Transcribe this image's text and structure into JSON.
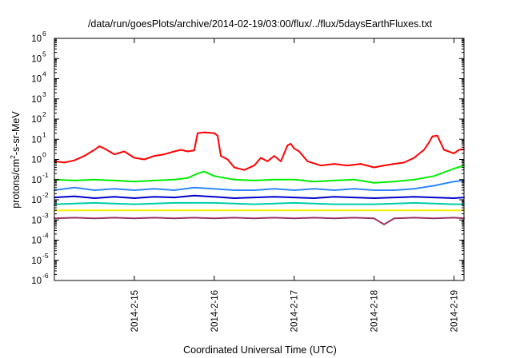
{
  "chart_data": {
    "type": "line",
    "title": "/data/run/goesPlots/archive/2014-02-19/03:00/flux/../flux/5daysEarthFluxes.txt",
    "xlabel": "Coordinated Universal Time (UTC)",
    "ylabel": {
      "base": "protons/cm",
      "sup": "2",
      "rest": "-s-sr-MeV"
    },
    "y_scale": "log",
    "ylim": [
      1e-06,
      1000000.0
    ],
    "y_ticks": [
      {
        "value": 1e-06,
        "base": "10",
        "exp": "-6"
      },
      {
        "value": 1e-05,
        "base": "10",
        "exp": "-5"
      },
      {
        "value": 0.0001,
        "base": "10",
        "exp": "-4"
      },
      {
        "value": 0.001,
        "base": "10",
        "exp": "-3"
      },
      {
        "value": 0.01,
        "base": "10",
        "exp": "-2"
      },
      {
        "value": 0.1,
        "base": "10",
        "exp": "-1"
      },
      {
        "value": 1.0,
        "base": "10",
        "exp": "0"
      },
      {
        "value": 10.0,
        "base": "10",
        "exp": "1"
      },
      {
        "value": 100.0,
        "base": "10",
        "exp": "2"
      },
      {
        "value": 1000.0,
        "base": "10",
        "exp": "3"
      },
      {
        "value": 10000.0,
        "base": "10",
        "exp": "4"
      },
      {
        "value": 100000.0,
        "base": "10",
        "exp": "5"
      },
      {
        "value": 1000000.0,
        "base": "10",
        "exp": "6"
      }
    ],
    "xlim": [
      "2014-02-14T00:00",
      "2014-02-19T03:00"
    ],
    "x_ticks": [
      {
        "label": "2014-2-15",
        "date": "2014-02-15T00:00"
      },
      {
        "label": "2014-2-16",
        "date": "2014-02-16T00:00"
      },
      {
        "label": "2014-2-17",
        "date": "2014-02-17T00:00"
      },
      {
        "label": "2014-2-18",
        "date": "2014-02-18T00:00"
      },
      {
        "label": "2014-2-19",
        "date": "2014-02-19T00:00"
      }
    ],
    "grid": false,
    "legend": "none",
    "series": [
      {
        "color": "#ff0000",
        "points": [
          [
            "2014-02-14T00:00",
            0.8
          ],
          [
            "2014-02-14T03:00",
            0.7
          ],
          [
            "2014-02-14T06:00",
            0.9
          ],
          [
            "2014-02-14T09:00",
            1.5
          ],
          [
            "2014-02-14T12:00",
            3.0
          ],
          [
            "2014-02-14T13:30",
            4.5
          ],
          [
            "2014-02-14T15:00",
            3.5
          ],
          [
            "2014-02-14T18:00",
            1.8
          ],
          [
            "2014-02-14T21:00",
            2.5
          ],
          [
            "2014-02-15T00:00",
            1.2
          ],
          [
            "2014-02-15T03:00",
            1.0
          ],
          [
            "2014-02-15T06:00",
            1.5
          ],
          [
            "2014-02-15T09:00",
            1.8
          ],
          [
            "2014-02-15T12:00",
            2.5
          ],
          [
            "2014-02-15T14:00",
            3.0
          ],
          [
            "2014-02-15T16:00",
            2.5
          ],
          [
            "2014-02-15T18:00",
            2.8
          ],
          [
            "2014-02-15T19:00",
            20
          ],
          [
            "2014-02-15T21:00",
            22
          ],
          [
            "2014-02-16T00:00",
            20
          ],
          [
            "2014-02-16T01:00",
            15
          ],
          [
            "2014-02-16T02:00",
            1.5
          ],
          [
            "2014-02-16T04:00",
            1.0
          ],
          [
            "2014-02-16T06:00",
            0.4
          ],
          [
            "2014-02-16T09:00",
            0.3
          ],
          [
            "2014-02-16T12:00",
            0.5
          ],
          [
            "2014-02-16T14:00",
            1.2
          ],
          [
            "2014-02-16T16:00",
            0.8
          ],
          [
            "2014-02-16T18:00",
            1.5
          ],
          [
            "2014-02-16T20:00",
            0.8
          ],
          [
            "2014-02-16T22:00",
            5.0
          ],
          [
            "2014-02-16T23:00",
            6.0
          ],
          [
            "2014-02-17T00:00",
            3.5
          ],
          [
            "2014-02-17T01:30",
            2.5
          ],
          [
            "2014-02-17T04:00",
            0.8
          ],
          [
            "2014-02-17T08:00",
            0.5
          ],
          [
            "2014-02-17T12:00",
            0.6
          ],
          [
            "2014-02-17T16:00",
            0.5
          ],
          [
            "2014-02-17T20:00",
            0.6
          ],
          [
            "2014-02-18T00:00",
            0.4
          ],
          [
            "2014-02-18T03:00",
            0.5
          ],
          [
            "2014-02-18T06:00",
            0.6
          ],
          [
            "2014-02-18T09:00",
            0.7
          ],
          [
            "2014-02-18T12:00",
            1.2
          ],
          [
            "2014-02-18T15:00",
            3.0
          ],
          [
            "2014-02-18T16:30",
            7.0
          ],
          [
            "2014-02-18T17:30",
            14
          ],
          [
            "2014-02-18T19:00",
            15
          ],
          [
            "2014-02-18T21:00",
            3.0
          ],
          [
            "2014-02-19T00:00",
            2.0
          ],
          [
            "2014-02-19T01:30",
            3.0
          ],
          [
            "2014-02-19T03:00",
            3.2
          ]
        ]
      },
      {
        "color": "#00ee00",
        "points": [
          [
            "2014-02-14T00:00",
            0.1
          ],
          [
            "2014-02-14T06:00",
            0.09
          ],
          [
            "2014-02-14T12:00",
            0.1
          ],
          [
            "2014-02-14T18:00",
            0.09
          ],
          [
            "2014-02-15T00:00",
            0.08
          ],
          [
            "2014-02-15T06:00",
            0.09
          ],
          [
            "2014-02-15T12:00",
            0.1
          ],
          [
            "2014-02-15T16:00",
            0.12
          ],
          [
            "2014-02-15T19:00",
            0.2
          ],
          [
            "2014-02-15T21:00",
            0.25
          ],
          [
            "2014-02-16T00:00",
            0.15
          ],
          [
            "2014-02-16T06:00",
            0.1
          ],
          [
            "2014-02-16T12:00",
            0.09
          ],
          [
            "2014-02-16T18:00",
            0.1
          ],
          [
            "2014-02-17T00:00",
            0.1
          ],
          [
            "2014-02-17T06:00",
            0.08
          ],
          [
            "2014-02-17T12:00",
            0.09
          ],
          [
            "2014-02-17T18:00",
            0.1
          ],
          [
            "2014-02-18T00:00",
            0.07
          ],
          [
            "2014-02-18T06:00",
            0.08
          ],
          [
            "2014-02-18T12:00",
            0.1
          ],
          [
            "2014-02-18T18:00",
            0.15
          ],
          [
            "2014-02-19T00:00",
            0.35
          ],
          [
            "2014-02-19T03:00",
            0.5
          ]
        ]
      },
      {
        "color": "#2f86ff",
        "points": [
          [
            "2014-02-14T00:00",
            0.03
          ],
          [
            "2014-02-14T06:00",
            0.04
          ],
          [
            "2014-02-14T12:00",
            0.03
          ],
          [
            "2014-02-14T18:00",
            0.035
          ],
          [
            "2014-02-15T00:00",
            0.03
          ],
          [
            "2014-02-15T06:00",
            0.035
          ],
          [
            "2014-02-15T12:00",
            0.03
          ],
          [
            "2014-02-15T18:00",
            0.04
          ],
          [
            "2014-02-16T00:00",
            0.035
          ],
          [
            "2014-02-16T06:00",
            0.03
          ],
          [
            "2014-02-16T12:00",
            0.03
          ],
          [
            "2014-02-16T18:00",
            0.035
          ],
          [
            "2014-02-17T00:00",
            0.03
          ],
          [
            "2014-02-17T06:00",
            0.035
          ],
          [
            "2014-02-17T12:00",
            0.03
          ],
          [
            "2014-02-17T18:00",
            0.035
          ],
          [
            "2014-02-18T00:00",
            0.03
          ],
          [
            "2014-02-18T06:00",
            0.03
          ],
          [
            "2014-02-18T12:00",
            0.035
          ],
          [
            "2014-02-18T18:00",
            0.05
          ],
          [
            "2014-02-19T00:00",
            0.08
          ],
          [
            "2014-02-19T03:00",
            0.09
          ]
        ]
      },
      {
        "color": "#0000cc",
        "points": [
          [
            "2014-02-14T00:00",
            0.013
          ],
          [
            "2014-02-14T06:00",
            0.015
          ],
          [
            "2014-02-14T12:00",
            0.012
          ],
          [
            "2014-02-14T18:00",
            0.014
          ],
          [
            "2014-02-15T00:00",
            0.012
          ],
          [
            "2014-02-15T06:00",
            0.014
          ],
          [
            "2014-02-15T12:00",
            0.013
          ],
          [
            "2014-02-15T18:00",
            0.016
          ],
          [
            "2014-02-16T00:00",
            0.014
          ],
          [
            "2014-02-16T06:00",
            0.012
          ],
          [
            "2014-02-16T12:00",
            0.013
          ],
          [
            "2014-02-16T18:00",
            0.014
          ],
          [
            "2014-02-17T00:00",
            0.013
          ],
          [
            "2014-02-17T06:00",
            0.012
          ],
          [
            "2014-02-17T12:00",
            0.014
          ],
          [
            "2014-02-17T18:00",
            0.013
          ],
          [
            "2014-02-18T00:00",
            0.012
          ],
          [
            "2014-02-18T06:00",
            0.013
          ],
          [
            "2014-02-18T12:00",
            0.014
          ],
          [
            "2014-02-18T18:00",
            0.013
          ],
          [
            "2014-02-19T00:00",
            0.012
          ],
          [
            "2014-02-19T03:00",
            0.013
          ]
        ]
      },
      {
        "color": "#00ccaa",
        "points": [
          [
            "2014-02-14T00:00",
            0.006
          ],
          [
            "2014-02-14T12:00",
            0.007
          ],
          [
            "2014-02-15T00:00",
            0.006
          ],
          [
            "2014-02-15T12:00",
            0.007
          ],
          [
            "2014-02-16T00:00",
            0.007
          ],
          [
            "2014-02-16T12:00",
            0.006
          ],
          [
            "2014-02-17T00:00",
            0.007
          ],
          [
            "2014-02-17T12:00",
            0.006
          ],
          [
            "2014-02-18T00:00",
            0.006
          ],
          [
            "2014-02-18T12:00",
            0.007
          ],
          [
            "2014-02-19T00:00",
            0.006
          ],
          [
            "2014-02-19T03:00",
            0.006
          ]
        ]
      },
      {
        "color": "#ffee00",
        "points": [
          [
            "2014-02-14T00:00",
            0.003
          ],
          [
            "2014-02-14T12:00",
            0.003
          ],
          [
            "2014-02-15T00:00",
            0.003
          ],
          [
            "2014-02-15T12:00",
            0.003
          ],
          [
            "2014-02-16T00:00",
            0.003
          ],
          [
            "2014-02-16T12:00",
            0.003
          ],
          [
            "2014-02-17T00:00",
            0.003
          ],
          [
            "2014-02-17T12:00",
            0.003
          ],
          [
            "2014-02-18T00:00",
            0.003
          ],
          [
            "2014-02-18T12:00",
            0.003
          ],
          [
            "2014-02-19T00:00",
            0.003
          ],
          [
            "2014-02-19T03:00",
            0.003
          ]
        ]
      },
      {
        "color": "#993366",
        "points": [
          [
            "2014-02-14T00:00",
            0.0012
          ],
          [
            "2014-02-14T06:00",
            0.0013
          ],
          [
            "2014-02-14T12:00",
            0.0012
          ],
          [
            "2014-02-14T18:00",
            0.0013
          ],
          [
            "2014-02-15T00:00",
            0.0012
          ],
          [
            "2014-02-15T06:00",
            0.0013
          ],
          [
            "2014-02-15T12:00",
            0.0012
          ],
          [
            "2014-02-15T18:00",
            0.0013
          ],
          [
            "2014-02-16T00:00",
            0.0012
          ],
          [
            "2014-02-16T06:00",
            0.0013
          ],
          [
            "2014-02-16T12:00",
            0.0012
          ],
          [
            "2014-02-16T18:00",
            0.0013
          ],
          [
            "2014-02-17T00:00",
            0.0012
          ],
          [
            "2014-02-17T06:00",
            0.0013
          ],
          [
            "2014-02-17T12:00",
            0.0012
          ],
          [
            "2014-02-17T18:00",
            0.0013
          ],
          [
            "2014-02-18T00:00",
            0.0012
          ],
          [
            "2014-02-18T03:00",
            0.0006
          ],
          [
            "2014-02-18T06:00",
            0.0012
          ],
          [
            "2014-02-18T12:00",
            0.0013
          ],
          [
            "2014-02-18T18:00",
            0.0012
          ],
          [
            "2014-02-19T00:00",
            0.0013
          ],
          [
            "2014-02-19T03:00",
            0.0012
          ]
        ]
      }
    ]
  }
}
